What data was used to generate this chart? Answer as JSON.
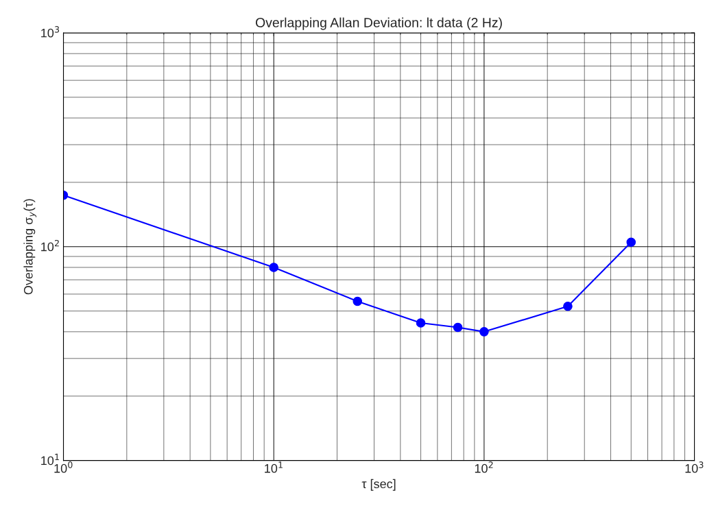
{
  "chart_data": {
    "type": "line",
    "title": "Overlapping Allan Deviation: lt data (2 Hz)",
    "xlabel": "τ [sec]",
    "ylabel": "Overlapping σ$_{y}$(τ)",
    "x": [
      1,
      10,
      25,
      50,
      75,
      100,
      250,
      500
    ],
    "series": [
      {
        "color": "#0000ff",
        "values": [
          174,
          80,
          55.5,
          44,
          41.9,
          40,
          52.6,
          105
        ]
      }
    ],
    "log": "xy",
    "xlim": [
      1,
      1000
    ],
    "ylim": [
      10,
      1000
    ],
    "xticks": [
      {
        "value": 1,
        "label": "10$^{0}$"
      },
      {
        "value": 10,
        "label": "10$^{1}$"
      },
      {
        "value": 100,
        "label": "10$^{2}$"
      },
      {
        "value": 1000,
        "label": "10$^{3}$"
      }
    ],
    "yticks": [
      {
        "value": 10,
        "label": "10$^{1}$"
      },
      {
        "value": 100,
        "label": "10$^{2}$"
      },
      {
        "value": 1000,
        "label": "10$^{3}$"
      }
    ],
    "grid": true,
    "marker": "circle",
    "line_style": "solid"
  }
}
